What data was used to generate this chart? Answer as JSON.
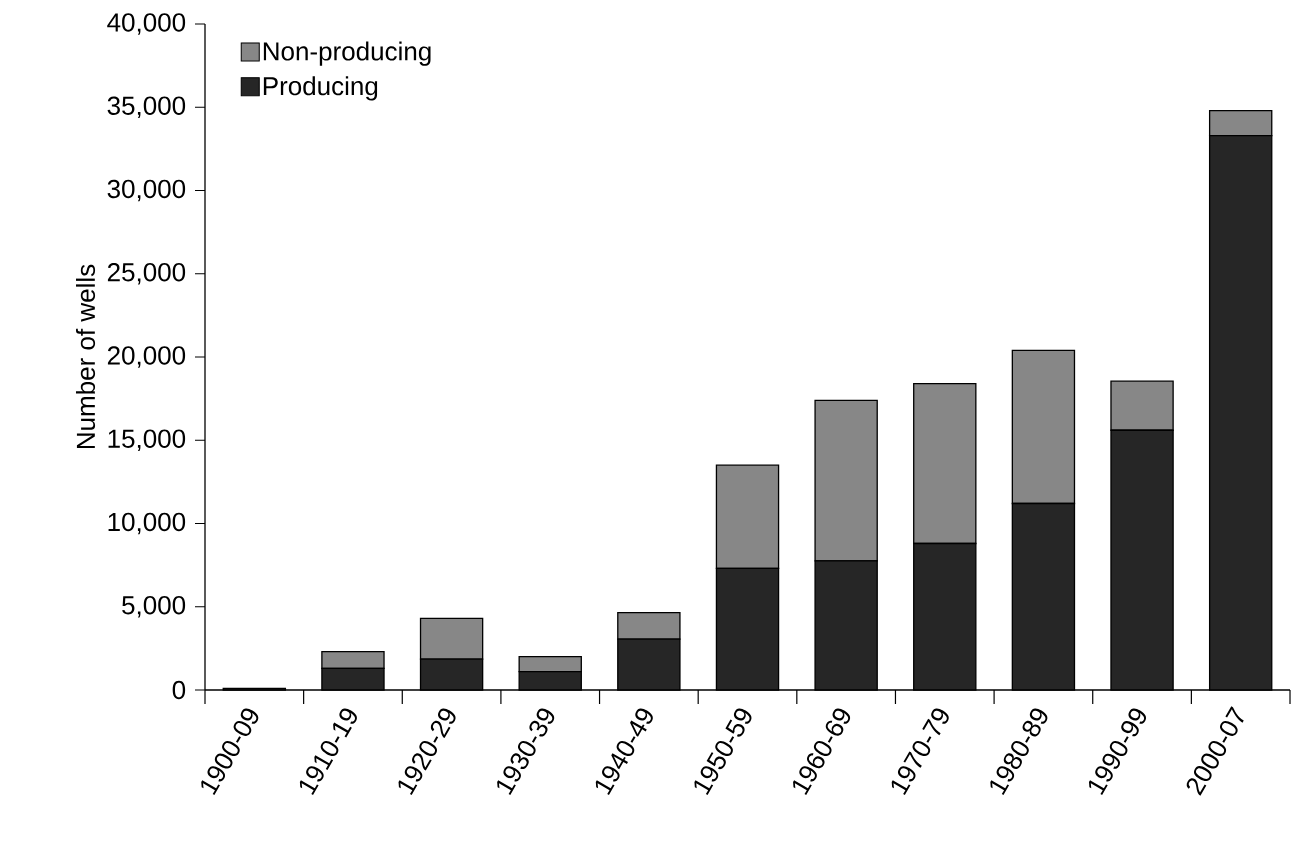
{
  "chart_data": {
    "type": "bar",
    "stacked": true,
    "ylabel": "Number of wells",
    "categories": [
      "1900-09",
      "1910-19",
      "1920-29",
      "1930-39",
      "1940-49",
      "1950-59",
      "1960-69",
      "1970-79",
      "1980-89",
      "1990-99",
      "2000-07"
    ],
    "series": [
      {
        "name": "Producing",
        "color": "#262626",
        "values": [
          100,
          1300,
          1850,
          1100,
          3050,
          7300,
          7750,
          8800,
          11200,
          15600,
          33300
        ]
      },
      {
        "name": "Non-producing",
        "color": "#878787",
        "values": [
          0,
          1000,
          2450,
          900,
          1600,
          6200,
          9650,
          9600,
          9200,
          2950,
          1500
        ]
      }
    ],
    "ylim": [
      0,
      40000
    ],
    "yticks": [
      0,
      {
        "value": 5000,
        "label": "5,000"
      },
      {
        "value": 10000,
        "label": "10,000"
      },
      {
        "value": 15000,
        "label": "15,000"
      },
      {
        "value": 20000,
        "label": "20,000"
      },
      {
        "value": 25000,
        "label": "25,000"
      },
      {
        "value": 30000,
        "label": "30,000"
      },
      {
        "value": 35000,
        "label": "35,000"
      },
      {
        "value": 40000,
        "label": "40,000"
      }
    ],
    "grid": false,
    "legend": "top left"
  }
}
